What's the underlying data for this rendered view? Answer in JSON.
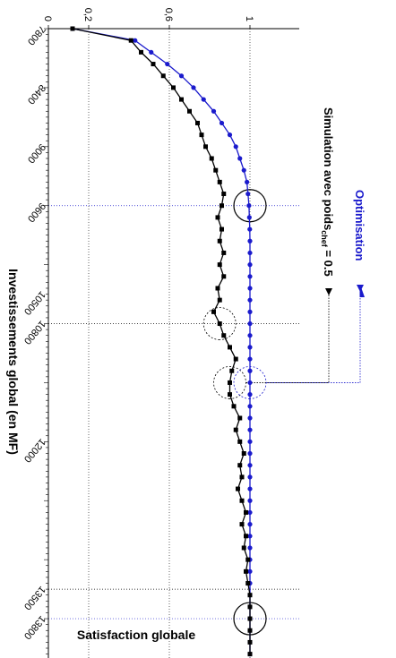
{
  "chart_data": {
    "type": "line",
    "orientation": "rotated-90-clockwise",
    "xlabel": "Investissements global (en MF)",
    "ylabel": "Satisfaction globale",
    "xlim": [
      7800,
      14200
    ],
    "ylim": [
      0,
      1.2
    ],
    "x_ticks": [
      "7800",
      "8400",
      "9000",
      "9600",
      "10500",
      "10800",
      "12000",
      "13500",
      "13800"
    ],
    "x_tick_values": [
      7800,
      8400,
      9000,
      9600,
      10500,
      10800,
      12000,
      13500,
      13800
    ],
    "y_ticks": [
      "0",
      "0,2",
      "0,6",
      "1"
    ],
    "y_tick_values": [
      0,
      0.2,
      0.6,
      1
    ],
    "grid": "dotted",
    "series": [
      {
        "name": "Optimisation",
        "color": "#1a1acc",
        "marker": "circle",
        "x": [
          7800,
          7920,
          8040,
          8160,
          8280,
          8400,
          8520,
          8640,
          8760,
          8880,
          9000,
          9120,
          9240,
          9360,
          9480,
          9600,
          9720,
          9840,
          9960,
          10080,
          10200,
          10320,
          10440,
          10560,
          10680,
          10800,
          10920,
          11040,
          11160,
          11280,
          11400,
          11520,
          11640,
          11760,
          11880,
          12000,
          12120,
          12240,
          12360,
          12480,
          12600,
          12720,
          12840,
          12960,
          13080,
          13200,
          13320,
          13440,
          13560,
          13680,
          13800,
          13920,
          14040,
          14160
        ],
        "values": [
          0.12,
          0.43,
          0.51,
          0.59,
          0.66,
          0.72,
          0.77,
          0.82,
          0.86,
          0.9,
          0.93,
          0.95,
          0.97,
          0.985,
          0.99,
          0.995,
          0.997,
          0.999,
          1.0,
          1.0,
          1.0,
          1.0,
          1.0,
          1.0,
          1.0,
          1.0,
          1.0,
          1.0,
          1.0,
          1.0,
          1.0,
          1.0,
          1.0,
          1.0,
          1.0,
          1.0,
          1.0,
          1.0,
          1.0,
          1.0,
          1.0,
          1.0,
          1.0,
          1.0,
          1.0,
          1.0,
          1.0,
          1.0,
          1.0,
          1.0,
          1.0,
          1.0,
          1.0,
          1.0
        ]
      },
      {
        "name": "Simulation avec poids",
        "name_sub": "chef",
        "name_suffix": " = 0.5",
        "color": "#000000",
        "marker": "square",
        "x": [
          7800,
          7920,
          8040,
          8160,
          8280,
          8400,
          8520,
          8640,
          8760,
          8880,
          9000,
          9120,
          9240,
          9360,
          9480,
          9600,
          9720,
          9840,
          9960,
          10080,
          10200,
          10320,
          10440,
          10560,
          10680,
          10800,
          10920,
          11040,
          11160,
          11280,
          11400,
          11520,
          11640,
          11760,
          11880,
          12000,
          12120,
          12240,
          12360,
          12480,
          12600,
          12720,
          12840,
          12960,
          13080,
          13200,
          13320,
          13440,
          13560,
          13680,
          13800,
          13920,
          14040,
          14160
        ],
        "values": [
          0.12,
          0.41,
          0.46,
          0.52,
          0.57,
          0.62,
          0.66,
          0.7,
          0.74,
          0.76,
          0.78,
          0.81,
          0.83,
          0.85,
          0.87,
          0.86,
          0.84,
          0.86,
          0.85,
          0.87,
          0.85,
          0.87,
          0.84,
          0.85,
          0.82,
          0.85,
          0.87,
          0.9,
          0.93,
          0.91,
          0.9,
          0.9,
          0.92,
          0.95,
          0.93,
          0.95,
          0.97,
          0.95,
          0.96,
          0.94,
          0.96,
          0.98,
          0.96,
          0.98,
          0.97,
          0.99,
          0.98,
          0.99,
          1.0,
          1.0,
          1.0,
          1.0,
          1.0,
          1.0
        ]
      }
    ]
  }
}
